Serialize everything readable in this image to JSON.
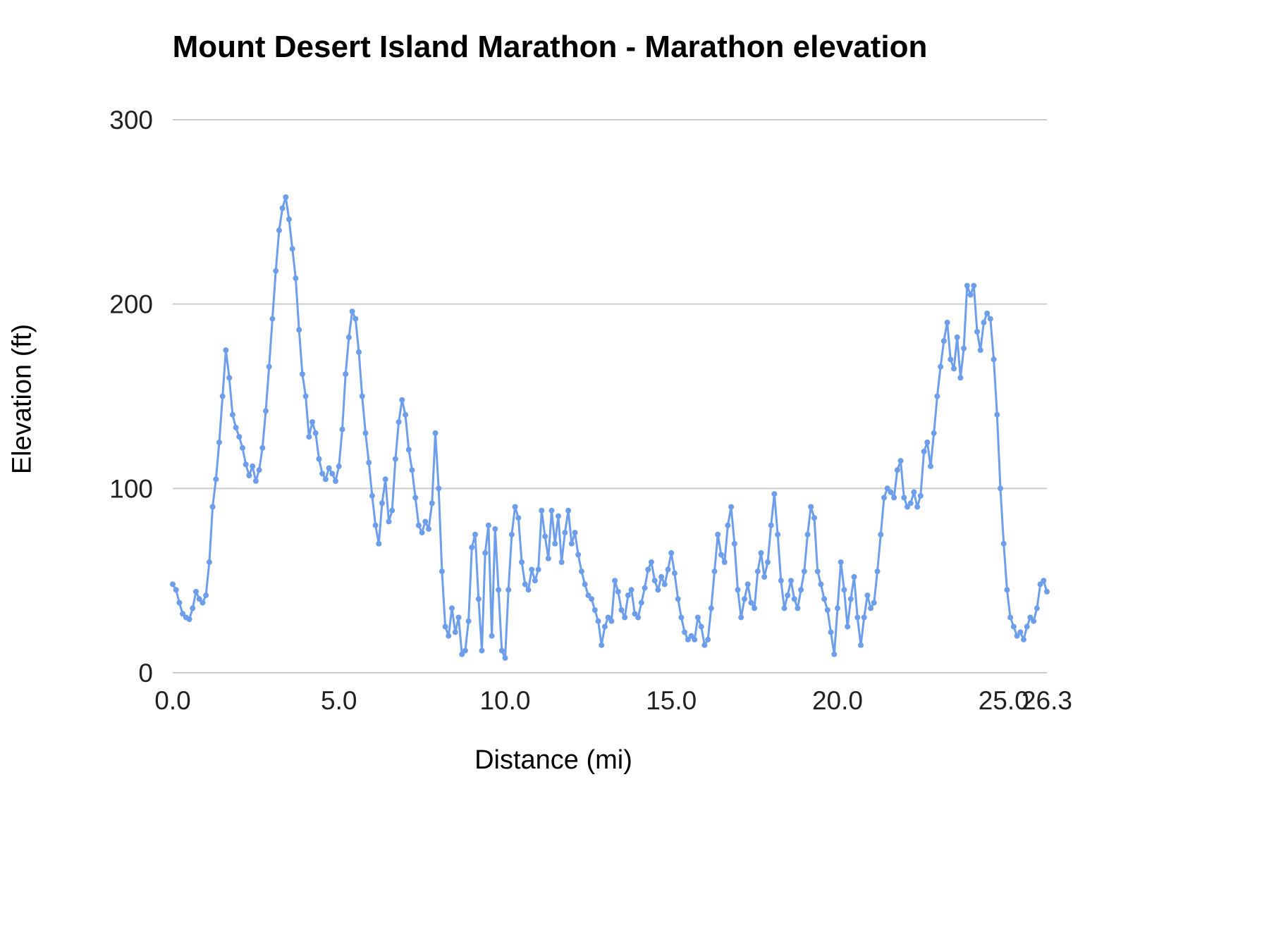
{
  "chart_data": {
    "type": "line",
    "title": "Mount Desert Island Marathon - Marathon elevation",
    "xlabel": "Distance (mi)",
    "ylabel": "Elevation (ft)",
    "xlim": [
      0,
      26.3
    ],
    "ylim": [
      0,
      300
    ],
    "grid": true,
    "legend": "none",
    "line_color": "#6d9eeb",
    "gridline_color": "#cccccc",
    "x_tick_values": [
      0,
      5,
      10,
      15,
      20,
      25,
      26.3
    ],
    "x_tick_labels": [
      "0.0",
      "5.0",
      "10.0",
      "15.0",
      "20.0",
      "25.0",
      "26.3"
    ],
    "y_tick_values": [
      0,
      100,
      200,
      300
    ],
    "y_tick_labels": [
      "0",
      "100",
      "200",
      "300"
    ],
    "x_start": 0,
    "x_step": 0.1,
    "series": [
      {
        "name": "Marathon elevation",
        "values": [
          48,
          45,
          38,
          32,
          30,
          29,
          35,
          44,
          40,
          38,
          42,
          60,
          90,
          105,
          125,
          150,
          175,
          160,
          140,
          133,
          128,
          122,
          113,
          107,
          112,
          104,
          110,
          122,
          142,
          166,
          192,
          218,
          240,
          252,
          258,
          246,
          230,
          214,
          186,
          162,
          150,
          128,
          136,
          130,
          116,
          108,
          105,
          111,
          108,
          104,
          112,
          132,
          162,
          182,
          196,
          192,
          174,
          150,
          130,
          114,
          96,
          80,
          70,
          92,
          105,
          82,
          88,
          116,
          136,
          148,
          140,
          121,
          110,
          95,
          80,
          76,
          82,
          78,
          92,
          130,
          100,
          55,
          25,
          20,
          35,
          22,
          30,
          10,
          12,
          28,
          68,
          75,
          40,
          12,
          65,
          80,
          20,
          78,
          45,
          12,
          8,
          45,
          75,
          90,
          84,
          60,
          48,
          45,
          56,
          50,
          56,
          88,
          74,
          62,
          88,
          70,
          85,
          60,
          76,
          88,
          70,
          76,
          64,
          55,
          48,
          42,
          40,
          34,
          28,
          15,
          25,
          30,
          28,
          50,
          44,
          34,
          30,
          42,
          45,
          32,
          30,
          38,
          46,
          56,
          60,
          50,
          45,
          52,
          48,
          56,
          65,
          54,
          40,
          30,
          22,
          18,
          20,
          18,
          30,
          25,
          15,
          18,
          35,
          55,
          75,
          64,
          60,
          80,
          90,
          70,
          45,
          30,
          40,
          48,
          38,
          35,
          55,
          65,
          52,
          60,
          80,
          97,
          75,
          50,
          35,
          42,
          50,
          40,
          35,
          45,
          55,
          75,
          90,
          84,
          55,
          48,
          40,
          34,
          22,
          10,
          35,
          60,
          45,
          25,
          40,
          52,
          30,
          15,
          30,
          42,
          35,
          38,
          55,
          75,
          95,
          100,
          98,
          95,
          110,
          115,
          95,
          90,
          92,
          98,
          90,
          96,
          120,
          125,
          112,
          130,
          150,
          166,
          180,
          190,
          170,
          165,
          182,
          160,
          176,
          210,
          205,
          210,
          185,
          175,
          190,
          195,
          192,
          170,
          140,
          100,
          70,
          45,
          30,
          25,
          20,
          22,
          18,
          25,
          30,
          28,
          35,
          48,
          50,
          44
        ]
      }
    ]
  }
}
